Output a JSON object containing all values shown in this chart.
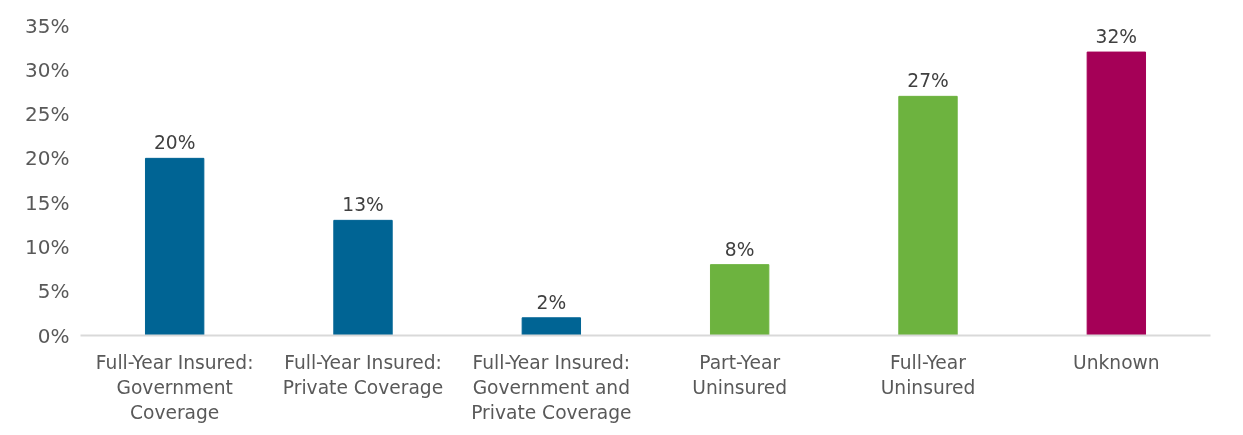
{
  "chart_data": {
    "type": "bar",
    "categories": [
      "Full-Year Insured: Government Coverage",
      "Full-Year Insured: Private Coverage",
      "Full-Year Insured: Government and Private Coverage",
      "Part-Year Uninsured",
      "Full-Year Uninsured",
      "Unknown"
    ],
    "values": [
      20,
      13,
      2,
      8,
      27,
      32
    ],
    "colors": [
      "#006494",
      "#006494",
      "#006494",
      "#6db33f",
      "#6db33f",
      "#a50057"
    ],
    "value_labels": [
      "20%",
      "13%",
      "2%",
      "8%",
      "27%",
      "32%"
    ],
    "ylim": [
      0,
      35
    ],
    "yticks": [
      {
        "value": 0,
        "label": "0%"
      },
      {
        "value": 5,
        "label": "5%"
      },
      {
        "value": 10,
        "label": "10%"
      },
      {
        "value": 15,
        "label": "15%"
      },
      {
        "value": 20,
        "label": "20%"
      },
      {
        "value": 25,
        "label": "25%"
      },
      {
        "value": 30,
        "label": "30%"
      },
      {
        "value": 35,
        "label": "35%"
      }
    ],
    "grid": false
  }
}
